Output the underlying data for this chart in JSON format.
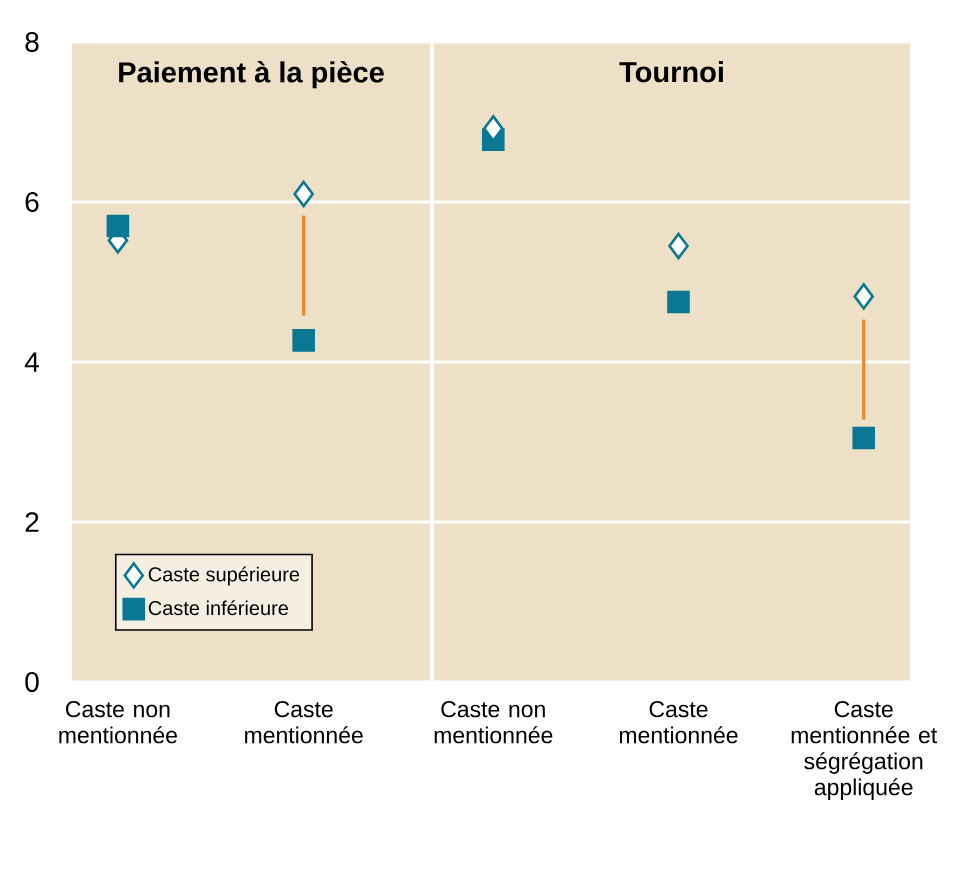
{
  "chart_data": [
    {
      "type": "scatter",
      "title": "Paiement à la pièce",
      "categories": [
        "Caste non mentionnée",
        "Caste mentionnée"
      ],
      "ylim": [
        0,
        8
      ],
      "yticks": [
        0,
        2,
        4,
        6,
        8
      ],
      "grid": "y",
      "legend": "bottom left",
      "series": [
        {
          "name": "Caste supérieure",
          "color": "#0b7893",
          "marker": "diamond",
          "values": [
            5.52,
            6.1
          ],
          "errors": [
            null,
            [
              4.58,
              5.83
            ]
          ]
        },
        {
          "name": "Caste inférieure",
          "color": "#0b7893",
          "marker": "square",
          "values": [
            5.7,
            4.27
          ]
        }
      ]
    },
    {
      "type": "scatter",
      "title": "Tournoi",
      "categories": [
        "Caste non mentionnée",
        "Caste mentionnée",
        "Caste mentionnée et ségrégation appliquée"
      ],
      "ylim": [
        0,
        8
      ],
      "yticks": [
        0,
        2,
        4,
        6,
        8
      ],
      "grid": "y",
      "tick_labels": "x",
      "series": [
        {
          "color": "#0b7893",
          "marker": "square",
          "values": [
            6.78,
            4.75,
            3.05
          ]
        },
        {
          "color": "#0b7893",
          "marker": "diamond",
          "values": [
            6.92,
            5.45,
            4.82
          ],
          "errors": [
            null,
            null,
            [
              3.28,
              4.53
            ]
          ]
        }
      ]
    }
  ]
}
